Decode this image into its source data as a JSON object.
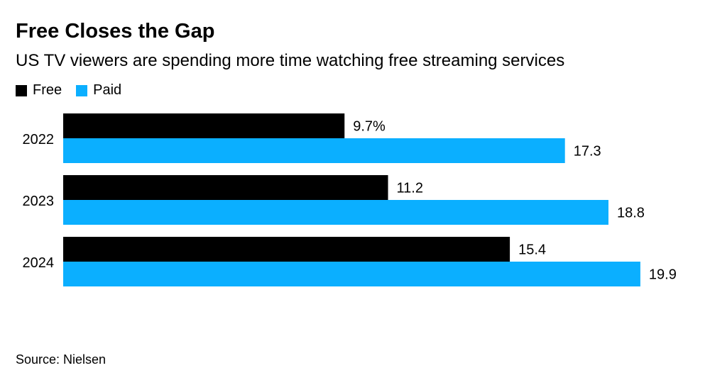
{
  "chart_data": {
    "type": "bar",
    "orientation": "horizontal",
    "title": "Free Closes the Gap",
    "subtitle": "US TV viewers are spending more time watching free streaming services",
    "categories": [
      "2022",
      "2023",
      "2024"
    ],
    "series": [
      {
        "name": "Free",
        "color": "#000000",
        "values": [
          9.7,
          11.2,
          15.4
        ],
        "labels": [
          "9.7%",
          "11.2",
          "15.4"
        ]
      },
      {
        "name": "Paid",
        "color": "#0BAFFF",
        "values": [
          17.3,
          18.8,
          19.9
        ],
        "labels": [
          "17.3",
          "18.8",
          "19.9"
        ]
      }
    ],
    "xlim": [
      0,
      22
    ],
    "grid": false,
    "legend": "top-left",
    "source": "Source: Nielsen"
  }
}
